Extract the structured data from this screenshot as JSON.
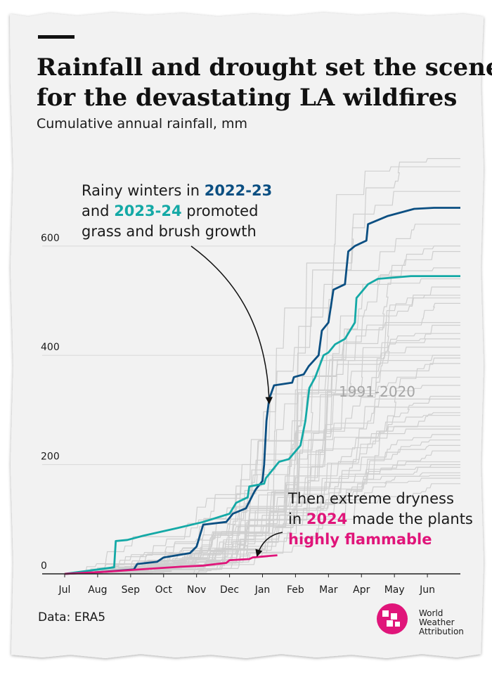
{
  "title_lines": [
    "Rainfall and drought set the scene",
    "for the devastating LA wildfires"
  ],
  "subtitle": "Cumulative annual rainfall, mm",
  "source": "Data: ERA5",
  "logo_text": [
    "World",
    "Weather",
    "Attribution"
  ],
  "annotation_top": {
    "line1": "Rainy winters in ",
    "year_a": "2022-23",
    "line2_pre": "and ",
    "year_b": "2023-24",
    "line2_post": " promoted",
    "line3": "grass and brush growth"
  },
  "annotation_bottom": {
    "line1": "Then extreme dryness",
    "line2_pre": "in ",
    "year": "2024",
    "line2_post": " made the plants",
    "line3": "highly flammable"
  },
  "colors": {
    "background": "#f2f2f2",
    "grid": "#d9d9d9",
    "baseline": "#222222",
    "historical": "#cfcfcf",
    "historical_label": "#a6a6a6",
    "y2022_23": "#0b4f82",
    "y2023_24": "#14a9a6",
    "y2024": "#e0157a",
    "logo": "#e0157a",
    "text": "#1a1a1a"
  },
  "chart_data": {
    "type": "line",
    "title": "Rainfall and drought set the scene for the devastating LA wildfires",
    "subtitle": "Cumulative annual rainfall, mm",
    "xlabel": "",
    "ylabel": "",
    "x_ticks": [
      "Jul",
      "Aug",
      "Sep",
      "Oct",
      "Nov",
      "Dec",
      "Jan",
      "Feb",
      "Mar",
      "Apr",
      "May",
      "Jun"
    ],
    "xlim_months": [
      0,
      12
    ],
    "ylim": [
      0,
      780
    ],
    "y_ticks": [
      0,
      200,
      400,
      600
    ],
    "grid": true,
    "historical_label": "1991-2020",
    "historical_final_totals": [
      760,
      745,
      700,
      640,
      600,
      590,
      560,
      540,
      525,
      510,
      505,
      495,
      460,
      455,
      440,
      430,
      415,
      400,
      395,
      385,
      360,
      345,
      325,
      320,
      305,
      295,
      290,
      270,
      265,
      255,
      245,
      235,
      225,
      205,
      200,
      195,
      185,
      180,
      175,
      165
    ],
    "series": [
      {
        "name": "2022-23",
        "color_key": "y2022_23",
        "points": [
          [
            0,
            0
          ],
          [
            1.0,
            3
          ],
          [
            2.1,
            8
          ],
          [
            2.2,
            18
          ],
          [
            2.8,
            22
          ],
          [
            3.0,
            30
          ],
          [
            3.8,
            38
          ],
          [
            4.0,
            50
          ],
          [
            4.2,
            90
          ],
          [
            4.9,
            95
          ],
          [
            5.1,
            110
          ],
          [
            5.5,
            120
          ],
          [
            5.75,
            150
          ],
          [
            5.8,
            155
          ],
          [
            6.0,
            170
          ],
          [
            6.05,
            200
          ],
          [
            6.12,
            280
          ],
          [
            6.2,
            320
          ],
          [
            6.35,
            345
          ],
          [
            6.9,
            350
          ],
          [
            6.95,
            360
          ],
          [
            7.25,
            365
          ],
          [
            7.4,
            380
          ],
          [
            7.7,
            400
          ],
          [
            7.8,
            445
          ],
          [
            8.0,
            460
          ],
          [
            8.15,
            520
          ],
          [
            8.5,
            530
          ],
          [
            8.6,
            590
          ],
          [
            8.8,
            600
          ],
          [
            9.15,
            610
          ],
          [
            9.2,
            640
          ],
          [
            9.8,
            655
          ],
          [
            10.6,
            668
          ],
          [
            11.2,
            670
          ],
          [
            12.0,
            670
          ]
        ]
      },
      {
        "name": "2023-24",
        "color_key": "y2023_24",
        "points": [
          [
            0,
            0
          ],
          [
            1.0,
            8
          ],
          [
            1.5,
            12
          ],
          [
            1.55,
            60
          ],
          [
            1.9,
            62
          ],
          [
            2.4,
            70
          ],
          [
            3.5,
            85
          ],
          [
            4.2,
            95
          ],
          [
            5.0,
            110
          ],
          [
            5.2,
            130
          ],
          [
            5.55,
            140
          ],
          [
            5.6,
            160
          ],
          [
            6.05,
            165
          ],
          [
            6.1,
            175
          ],
          [
            6.3,
            190
          ],
          [
            6.5,
            205
          ],
          [
            6.8,
            210
          ],
          [
            7.15,
            235
          ],
          [
            7.3,
            280
          ],
          [
            7.42,
            340
          ],
          [
            7.6,
            360
          ],
          [
            7.85,
            400
          ],
          [
            8.0,
            405
          ],
          [
            8.2,
            420
          ],
          [
            8.5,
            430
          ],
          [
            8.8,
            460
          ],
          [
            8.85,
            505
          ],
          [
            9.2,
            530
          ],
          [
            9.5,
            540
          ],
          [
            10.5,
            545
          ],
          [
            12.0,
            545
          ]
        ]
      },
      {
        "name": "2024",
        "color_key": "y2024",
        "points": [
          [
            0,
            0
          ],
          [
            1.3,
            4
          ],
          [
            2.5,
            9
          ],
          [
            3.5,
            13
          ],
          [
            4.2,
            15
          ],
          [
            4.6,
            18
          ],
          [
            4.9,
            20
          ],
          [
            5.0,
            25
          ],
          [
            5.6,
            27
          ],
          [
            5.7,
            30
          ],
          [
            6.25,
            33
          ],
          [
            6.45,
            34
          ]
        ]
      }
    ]
  }
}
